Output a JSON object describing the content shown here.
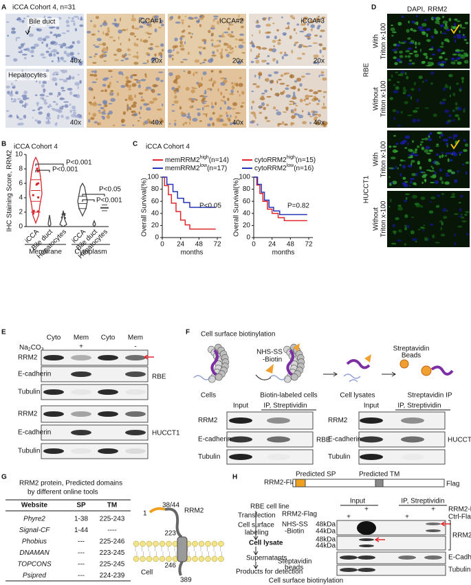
{
  "A": {
    "letter": "A",
    "title": "iCCA Cohort 4, n=31",
    "bile_duct": "Bile duct",
    "hepatocytes": "Hepatocytes",
    "columns": [
      "iCCA#1",
      "iCCA#2",
      "iCCA#3"
    ],
    "mag_top": [
      "40x",
      "20x",
      "20x",
      "20x"
    ],
    "mag_bottom": [
      "40x",
      "40x",
      "40x",
      "40x"
    ]
  },
  "B": {
    "letter": "B",
    "title": "iCCA Cohort 4",
    "y_label": "IHC Staining Score, RRM2",
    "yticks": [
      0,
      2,
      4,
      6,
      8,
      10
    ],
    "categories": [
      "iCCA",
      "Bile duct",
      "Hepatocytes",
      "iCCA",
      "Bile duct",
      "Hepatocytes"
    ],
    "groups": [
      "Membrane",
      "Cytoplasm"
    ],
    "p_values": [
      "P<0.001",
      "P<0.001",
      "P<0.05",
      "P<0.001"
    ]
  },
  "C": {
    "letter": "C",
    "title": "iCCA Cohort 4",
    "legend_left": [
      {
        "name": "memRRM2",
        "sup": "high",
        "n": "(n=14)"
      },
      {
        "name": "memRRM2",
        "sup": "low",
        "n": "(n=17)"
      }
    ],
    "legend_right": [
      {
        "name": "cytoRRM2",
        "sup": "high",
        "n": "(n=15)"
      },
      {
        "name": "cytoRRM2",
        "sup": "low",
        "n": "(n=16)"
      }
    ],
    "y_label": "Overall Survival(%)",
    "x_label": "months",
    "yticks": [
      0,
      20,
      40,
      60,
      80,
      100
    ],
    "xticks": [
      0,
      24,
      48,
      72
    ],
    "p_left": "P<0.05",
    "p_right": "P=0.82"
  },
  "D": {
    "letter": "D",
    "stain_dapi": "DAPI,",
    "stain_rrm2": "RRM2",
    "cell_lines": [
      "RBE",
      "HUCCT1"
    ],
    "conditions": [
      [
        "With",
        "Triton x-100"
      ],
      [
        "Without",
        "Triton x-100"
      ],
      [
        "With",
        "Triton x-100"
      ],
      [
        "Without",
        "Triton x-100"
      ]
    ]
  },
  "E": {
    "letter": "E",
    "reagent": [
      "Na",
      "2",
      "CO",
      "3"
    ],
    "fractions": [
      "Cyto",
      "Mem",
      "Cyto",
      "Mem"
    ],
    "treatment": [
      "+",
      "-"
    ],
    "rows_rbe": [
      "RRM2",
      "E-cadherin",
      "Tubulin"
    ],
    "rows_hucct1": [
      "RRM2",
      "E-cadherin",
      "Tubulin"
    ],
    "cell_lines": [
      "RBE",
      "HUCCT1"
    ]
  },
  "F": {
    "letter": "F",
    "title": "Cell surface biotinylation",
    "reagent": [
      "NHS-SS",
      "-Biotin"
    ],
    "beads": [
      "Streptavidin",
      "Beads"
    ],
    "steps": [
      "Cells",
      "Biotin-labeled cells",
      "Cell lysates",
      "Streptavidin IP"
    ],
    "blots": [
      {
        "columns": [
          "Input",
          "IP, Streptividin"
        ],
        "rows": [
          "RRM2",
          "E-cadherin",
          "Tubulin"
        ],
        "cell_line": "RBE"
      },
      {
        "columns": [
          "Input",
          "IP, Streptividin"
        ],
        "rows": [
          "RRM2",
          "E-cadherin",
          "Tubulin"
        ],
        "cell_line": "HUCCT1"
      }
    ]
  },
  "G": {
    "letter": "G",
    "title": [
      "RRM2 protein, Predicted domains",
      "by different online tools"
    ],
    "table": {
      "header": [
        "Website",
        "SP",
        "TM"
      ],
      "rows": [
        [
          "Phyre2",
          "1-38",
          "225-243"
        ],
        [
          "Signal-CF",
          "1-44",
          "----"
        ],
        [
          "Phobius",
          "---",
          "225-246"
        ],
        [
          "DNAMAN",
          "---",
          "223-245"
        ],
        [
          "TOPCONS",
          "---",
          "225-245"
        ],
        [
          "Psipred",
          "---",
          "224-239"
        ]
      ]
    },
    "diagram": {
      "n_term": "1",
      "sp_end": "38/44",
      "protein": "RRM2",
      "tm_start": "223",
      "tm_end": "246",
      "c_term": "389",
      "cell": "Cell"
    }
  },
  "H": {
    "letter": "H",
    "construct": "RRM2-Flag",
    "sp": "Predicted SP",
    "tm": "Predicted TM",
    "tag": "Flag",
    "flow": {
      "start": "RBE cell line",
      "transfection": "Transfection",
      "transfection_agent": "RRM2-Flag",
      "labeling": [
        "Cell surface",
        "labeling"
      ],
      "labeling_agent": [
        "NHS-SS",
        "-Biotin"
      ],
      "lysate": "Cell lysate",
      "supernatant": "Supernatants",
      "beads": [
        "Steptavidin",
        "beads"
      ],
      "products": "Products for detection"
    },
    "blot": {
      "columns": [
        "Input",
        "IP, Streptividin"
      ],
      "plus": [
        "+",
        "+",
        "+",
        "+"
      ],
      "conditions": [
        "RRM2-Flag",
        "Ctrl-Flag"
      ],
      "mw": [
        "48kDa",
        "44kDa",
        "48kDa",
        "44kDa"
      ],
      "rows": [
        "RRM2-Flag",
        "E-Cadherin",
        "Tubulin"
      ]
    },
    "caption": "Cell surface biotinylation"
  }
}
